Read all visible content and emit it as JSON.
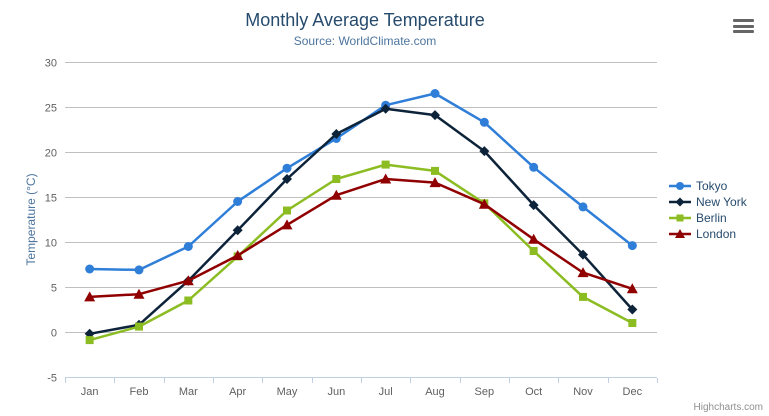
{
  "header": {
    "title": "Monthly Average Temperature",
    "subtitle": "Source: WorldClimate.com"
  },
  "icons": {
    "menu": "hamburger-menu-icon"
  },
  "credits": {
    "text": "Highcharts.com"
  },
  "colors": {
    "title": "#274b6d",
    "subtitle": "#4d759e",
    "axis_title": "#4d759e",
    "axis_labels": "#606060",
    "gridline": "#c0c0c0",
    "axis_line": "#c0d0e0",
    "legend_text": "#274b6d",
    "credits_text": "#909090",
    "menu_icon": "#666666"
  },
  "chart_data": {
    "type": "line",
    "title": "Monthly Average Temperature",
    "subtitle": "Source: WorldClimate.com",
    "xlabel": "",
    "ylabel": "Temperature (°C)",
    "categories": [
      "Jan",
      "Feb",
      "Mar",
      "Apr",
      "May",
      "Jun",
      "Jul",
      "Aug",
      "Sep",
      "Oct",
      "Nov",
      "Dec"
    ],
    "ylim": [
      -5,
      30
    ],
    "ytick_interval": 5,
    "grid": true,
    "legend_position": "right",
    "series": [
      {
        "name": "Tokyo",
        "color": "#2f7ed8",
        "marker": "circle",
        "values": [
          7.0,
          6.9,
          9.5,
          14.5,
          18.2,
          21.5,
          25.2,
          26.5,
          23.3,
          18.3,
          13.9,
          9.6
        ]
      },
      {
        "name": "New York",
        "color": "#0d233a",
        "marker": "diamond",
        "values": [
          -0.2,
          0.8,
          5.7,
          11.3,
          17.0,
          22.0,
          24.8,
          24.1,
          20.1,
          14.1,
          8.6,
          2.5
        ]
      },
      {
        "name": "Berlin",
        "color": "#8bbc21",
        "marker": "square",
        "values": [
          -0.9,
          0.6,
          3.5,
          8.4,
          13.5,
          17.0,
          18.6,
          17.9,
          14.3,
          9.0,
          3.9,
          1.0
        ]
      },
      {
        "name": "London",
        "color": "#910000",
        "marker": "triangle",
        "values": [
          3.9,
          4.2,
          5.7,
          8.5,
          11.9,
          15.2,
          17.0,
          16.6,
          14.2,
          10.3,
          6.6,
          4.8
        ]
      }
    ]
  }
}
